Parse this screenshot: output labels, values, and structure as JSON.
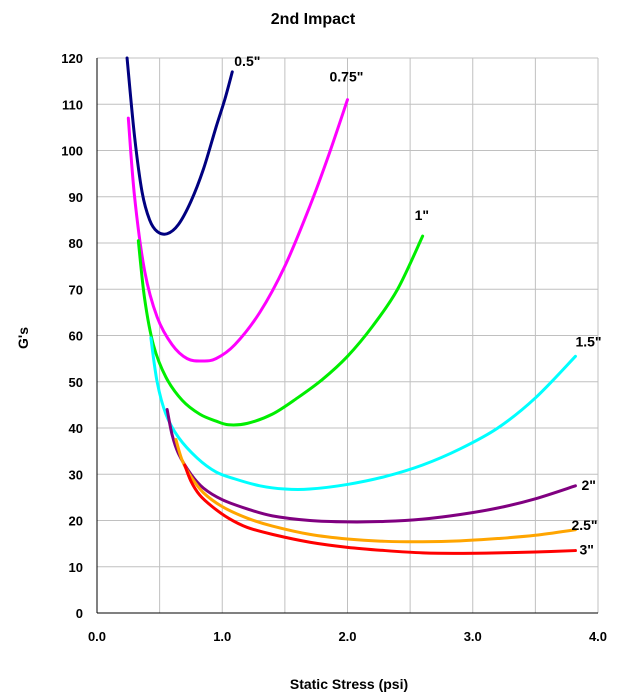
{
  "chart_data": {
    "type": "line",
    "title": "2nd Impact",
    "xlabel": "Static Stress (psi)",
    "ylabel": "G's",
    "xlim": [
      0,
      4
    ],
    "ylim": [
      0,
      120
    ],
    "x_ticks": [
      0,
      0.5,
      1,
      1.5,
      2,
      2.5,
      3,
      3.5,
      4
    ],
    "x_tick_labels": [
      "0.0",
      "1.0",
      "2.0",
      "3.0",
      "4.0"
    ],
    "x_tick_label_values": [
      0,
      1,
      2,
      3,
      4
    ],
    "y_ticks": [
      0,
      10,
      20,
      30,
      40,
      50,
      60,
      70,
      80,
      90,
      100,
      110,
      120
    ],
    "y_tick_labels": [
      "0",
      "10",
      "20",
      "30",
      "40",
      "50",
      "60",
      "70",
      "80",
      "90",
      "100",
      "110",
      "120"
    ],
    "grid": true,
    "legend": "none",
    "series": [
      {
        "label": "0.5\"",
        "color": "#000080",
        "x": [
          0.24,
          0.3,
          0.36,
          0.42,
          0.48,
          0.56,
          0.65,
          0.75,
          0.85,
          0.95,
          1.02,
          1.08
        ],
        "y": [
          120,
          103,
          91,
          85,
          82.5,
          82,
          84,
          89,
          96,
          105,
          111,
          117
        ]
      },
      {
        "label": "0.75\"",
        "color": "#ff00ff",
        "x": [
          0.25,
          0.3,
          0.38,
          0.48,
          0.6,
          0.72,
          0.84,
          0.95,
          1.1,
          1.3,
          1.5,
          1.7,
          1.85,
          2.0
        ],
        "y": [
          107,
          90,
          74,
          64,
          58,
          55,
          54.5,
          55,
          58,
          65,
          75,
          88,
          99,
          111
        ]
      },
      {
        "label": "1\"",
        "color": "#00ee00",
        "x": [
          0.33,
          0.38,
          0.45,
          0.55,
          0.68,
          0.82,
          0.95,
          1.05,
          1.2,
          1.4,
          1.6,
          1.8,
          2.0,
          2.2,
          2.4,
          2.6
        ],
        "y": [
          80.5,
          68,
          58,
          51,
          46,
          43,
          41.5,
          40.7,
          41,
          43,
          46.5,
          50.5,
          55.5,
          62,
          70,
          81.5
        ]
      },
      {
        "label": "1.5\"",
        "color": "#00ffff",
        "x": [
          0.43,
          0.48,
          0.55,
          0.65,
          0.8,
          0.95,
          1.1,
          1.3,
          1.5,
          1.7,
          2.0,
          2.3,
          2.6,
          2.9,
          3.2,
          3.5,
          3.82
        ],
        "y": [
          59.5,
          50,
          43,
          38,
          33.5,
          30.5,
          29,
          27.5,
          26.8,
          26.8,
          27.8,
          29.5,
          32,
          35.5,
          40,
          46.5,
          55.5
        ]
      },
      {
        "label": "2\"",
        "color": "#800080",
        "x": [
          0.56,
          0.6,
          0.65,
          0.75,
          0.85,
          1.0,
          1.2,
          1.4,
          1.7,
          2.0,
          2.3,
          2.6,
          2.9,
          3.2,
          3.5,
          3.82
        ],
        "y": [
          44,
          38.5,
          34.5,
          30,
          27,
          24.5,
          22.5,
          21,
          20,
          19.7,
          19.8,
          20.3,
          21.3,
          22.7,
          24.7,
          27.5
        ]
      },
      {
        "label": "2.5\"",
        "color": "#ffa500",
        "x": [
          0.63,
          0.68,
          0.75,
          0.85,
          1.0,
          1.2,
          1.4,
          1.7,
          2.0,
          2.3,
          2.6,
          2.9,
          3.2,
          3.5,
          3.82
        ],
        "y": [
          37.5,
          33,
          29.5,
          26,
          23,
          20.5,
          18.8,
          17,
          16,
          15.5,
          15.4,
          15.6,
          16.1,
          16.8,
          18
        ]
      },
      {
        "label": "3\"",
        "color": "#ff0000",
        "x": [
          0.7,
          0.75,
          0.82,
          0.92,
          1.05,
          1.2,
          1.4,
          1.7,
          2.0,
          2.3,
          2.6,
          2.9,
          3.2,
          3.5,
          3.82
        ],
        "y": [
          32,
          28.5,
          25.5,
          23,
          20.5,
          18.5,
          17,
          15.3,
          14.2,
          13.5,
          13,
          12.9,
          13,
          13.2,
          13.5
        ]
      }
    ]
  }
}
